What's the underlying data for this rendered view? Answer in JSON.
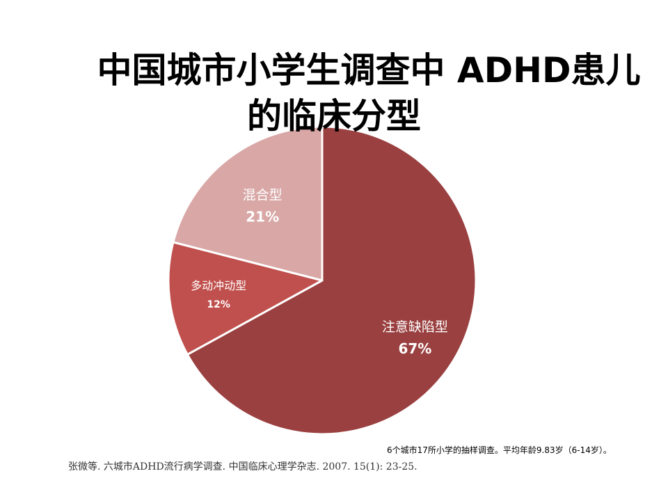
{
  "slide": {
    "title_line1": "中国城市小学生调查中 ADHD患儿",
    "title_line2": "的临床分型",
    "note": "6个城市17所小学的抽样调查。平均年龄9.83岁（6-14岁）。",
    "citation": "张微等. 六城市ADHD流行病学调查. 中国临床心理学杂志. 2007. 15(1): 23-25."
  },
  "chart_data": {
    "type": "pie",
    "title": "",
    "start_direction": "top",
    "clockwise": true,
    "slices": [
      {
        "name": "注意缺陷型",
        "value": 67,
        "label": "67%",
        "color": "#9B4040"
      },
      {
        "name": "多动冲动型",
        "value": 12,
        "label": "12%",
        "color": "#C0504D"
      },
      {
        "name": "混合型",
        "value": 21,
        "label": "21%",
        "color": "#D8A7A6"
      }
    ]
  }
}
